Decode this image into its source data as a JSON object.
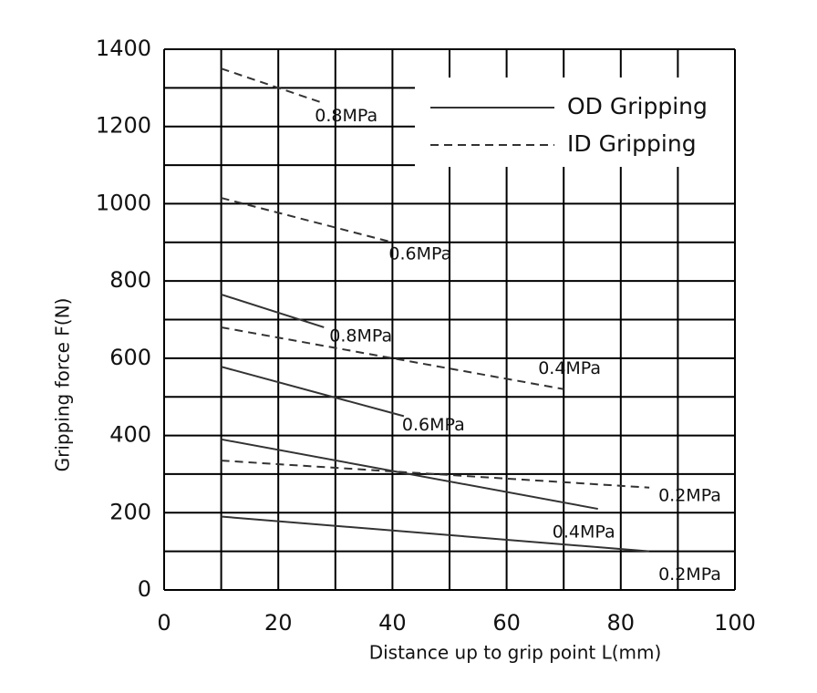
{
  "chart_data": {
    "type": "line",
    "x_label": "Distance up to grip point  L(mm)",
    "y_label": "Gripping force  F(N)",
    "xlim": [
      0,
      100
    ],
    "xticks": [
      0,
      20,
      40,
      60,
      80,
      100
    ],
    "ylim": [
      0,
      1400
    ],
    "yticks": [
      0,
      200,
      400,
      600,
      800,
      1000,
      1200,
      1400
    ],
    "xgrid": [
      0,
      10,
      20,
      30,
      40,
      50,
      60,
      70,
      80,
      90,
      100
    ],
    "ygrid": [
      0,
      100,
      200,
      300,
      400,
      500,
      600,
      700,
      800,
      900,
      1000,
      1100,
      1200,
      1300,
      1400
    ],
    "grid": true,
    "legend": "upper right",
    "series": [
      {
        "name": "OD Gripping",
        "style": "solid",
        "color": "#333333",
        "lines": [
          {
            "label": "0.8MPa",
            "x": [
              10,
              28
            ],
            "values": [
              765,
              680
            ]
          },
          {
            "label": "0.6MPa",
            "x": [
              10,
              42
            ],
            "values": [
              578,
              450
            ]
          },
          {
            "label": "0.4MPa",
            "x": [
              10,
              76
            ],
            "values": [
              390,
              210
            ]
          },
          {
            "label": "0.2MPa",
            "x": [
              10,
              85
            ],
            "values": [
              190,
              100
            ]
          }
        ]
      },
      {
        "name": "ID Gripping",
        "style": "dashed",
        "color": "#333333",
        "lines": [
          {
            "label": "0.8MPa",
            "x": [
              10,
              28
            ],
            "values": [
              1350,
              1260
            ]
          },
          {
            "label": "0.6MPa",
            "x": [
              10,
              40
            ],
            "values": [
              1015,
              900
            ]
          },
          {
            "label": "0.4MPa",
            "x": [
              10,
              70
            ],
            "values": [
              680,
              520
            ]
          },
          {
            "label": "0.2MPa",
            "x": [
              10,
              85
            ],
            "values": [
              335,
              265
            ]
          }
        ]
      }
    ]
  }
}
